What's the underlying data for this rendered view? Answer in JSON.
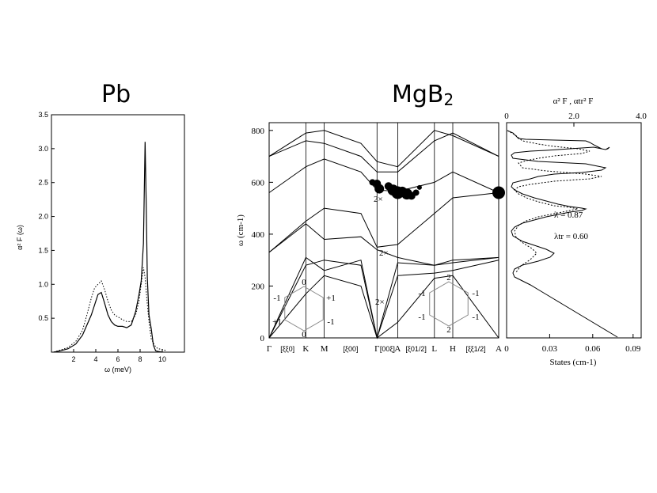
{
  "titles": {
    "pb": "Pb",
    "mgb2_base": "MgB",
    "mgb2_sub": "2"
  },
  "chart_data": [
    {
      "type": "line",
      "panel": "pb",
      "xlabel": "ω (meV)",
      "ylabel": "α² F (ω)",
      "xlim": [
        0,
        12
      ],
      "ylim": [
        0,
        3.5
      ],
      "xticks": [
        "2",
        "4",
        "6",
        "8",
        "10"
      ],
      "yticks": [
        "0.5",
        "1.0",
        "1.5",
        "2.0",
        "2.5",
        "3.0",
        "3.5"
      ],
      "series": [
        {
          "style": "solid",
          "x": [
            0.2,
            0.8,
            1.5,
            2.2,
            2.8,
            3.2,
            3.6,
            3.9,
            4.2,
            4.5,
            4.8,
            5.1,
            5.4,
            5.7,
            6.0,
            6.4,
            6.8,
            7.2,
            7.6,
            7.9,
            8.1,
            8.3,
            8.45,
            8.55,
            8.65,
            8.8,
            9.0,
            9.2,
            9.4,
            9.6,
            10.0
          ],
          "y": [
            0.0,
            0.02,
            0.05,
            0.12,
            0.25,
            0.4,
            0.55,
            0.7,
            0.85,
            0.88,
            0.72,
            0.55,
            0.45,
            0.4,
            0.38,
            0.38,
            0.36,
            0.4,
            0.6,
            0.85,
            1.05,
            1.6,
            3.1,
            2.2,
            1.1,
            0.55,
            0.35,
            0.1,
            0.02,
            0.01,
            0.0
          ]
        },
        {
          "style": "dotted",
          "x": [
            0.2,
            0.8,
            1.5,
            2.2,
            2.8,
            3.2,
            3.6,
            3.9,
            4.2,
            4.5,
            4.8,
            5.1,
            5.4,
            5.7,
            6.0,
            6.4,
            6.8,
            7.2,
            7.6,
            7.9,
            8.1,
            8.3,
            8.45,
            8.6,
            8.8,
            9.0,
            9.3,
            9.6,
            10.0,
            10.4
          ],
          "y": [
            0.0,
            0.03,
            0.07,
            0.16,
            0.32,
            0.55,
            0.8,
            0.95,
            1.0,
            1.05,
            0.92,
            0.75,
            0.62,
            0.55,
            0.52,
            0.48,
            0.45,
            0.45,
            0.55,
            0.75,
            1.0,
            1.25,
            1.1,
            0.8,
            0.45,
            0.2,
            0.1,
            0.05,
            0.04,
            0.02
          ]
        }
      ]
    },
    {
      "type": "line",
      "panel": "mgb2-dispersion",
      "ylabel": "ω (cm-1)",
      "ylim": [
        0,
        830
      ],
      "yticks": [
        "0",
        "200",
        "400",
        "600",
        "800"
      ],
      "k_labels": [
        "Γ",
        "[ξξ0]",
        "K",
        "M",
        "[ξ00]",
        "Γ",
        "[00ξ]",
        "A",
        "[ξ01/2]",
        "L",
        "H",
        "[ξξ1/2]",
        "A"
      ],
      "annotations": [
        "2×",
        "2×",
        "2×"
      ],
      "hexagon_left": [
        "0",
        "-1",
        "+1",
        "+1",
        "-1",
        "0"
      ],
      "hexagon_right": [
        "2",
        "-1",
        "-1",
        "-1",
        "-1",
        "2"
      ],
      "x_sym": [
        0,
        0.16,
        0.24,
        0.4,
        0.47,
        0.56,
        0.72,
        0.8,
        1.0
      ],
      "branches": [
        [
          0,
          0,
          0.16,
          170,
          0.24,
          240,
          0.4,
          200,
          0.47,
          0,
          0.56,
          60,
          0.72,
          230,
          0.8,
          240,
          1.0,
          0
        ],
        [
          0,
          0,
          0.16,
          280,
          0.24,
          300,
          0.4,
          280,
          0.47,
          0,
          0.56,
          240,
          0.72,
          250,
          0.8,
          260,
          1.0,
          300
        ],
        [
          0,
          0,
          0.16,
          310,
          0.24,
          260,
          0.4,
          300,
          0.47,
          0,
          0.56,
          290,
          0.72,
          280,
          0.8,
          300,
          1.0,
          310
        ],
        [
          0,
          330,
          0.16,
          440,
          0.24,
          380,
          0.4,
          390,
          0.47,
          340,
          0.56,
          310,
          0.72,
          280,
          0.8,
          290,
          1.0,
          310
        ],
        [
          0,
          330,
          0.16,
          450,
          0.24,
          500,
          0.4,
          480,
          0.47,
          350,
          0.56,
          360,
          0.72,
          480,
          0.8,
          540,
          1.0,
          560
        ],
        [
          0,
          560,
          0.16,
          660,
          0.24,
          690,
          0.4,
          640,
          0.47,
          570,
          0.56,
          565,
          0.72,
          600,
          0.8,
          640,
          1.0,
          560
        ],
        [
          0,
          700,
          0.16,
          760,
          0.24,
          750,
          0.4,
          700,
          0.47,
          640,
          0.56,
          640,
          0.72,
          760,
          0.8,
          790,
          1.0,
          700
        ],
        [
          0,
          700,
          0.16,
          790,
          0.24,
          800,
          0.4,
          750,
          0.47,
          680,
          0.56,
          660,
          0.72,
          800,
          0.8,
          780,
          1.0,
          700
        ]
      ],
      "coupling_dots": [
        [
          0.45,
          600,
          4
        ],
        [
          0.47,
          595,
          5
        ],
        [
          0.48,
          575,
          6
        ],
        [
          0.52,
          585,
          5
        ],
        [
          0.54,
          570,
          7
        ],
        [
          0.56,
          560,
          8
        ],
        [
          0.58,
          565,
          6
        ],
        [
          0.6,
          555,
          7
        ],
        [
          0.62,
          548,
          5
        ],
        [
          0.64,
          560,
          4
        ],
        [
          0.655,
          580,
          3
        ],
        [
          1.0,
          560,
          8
        ]
      ]
    },
    {
      "type": "line",
      "panel": "mgb2-eliashberg",
      "top_axis_label": "α² F , αtr² F",
      "top_ticks": [
        "0",
        "2.0",
        "4.0"
      ],
      "xlabel": "States (cm-1)",
      "xticks": [
        "0",
        "0.03",
        "0.06",
        "0.09"
      ],
      "annotations": {
        "lambda": "λ  = 0.87",
        "lambda_tr": "λtr = 0.60"
      }
    }
  ]
}
